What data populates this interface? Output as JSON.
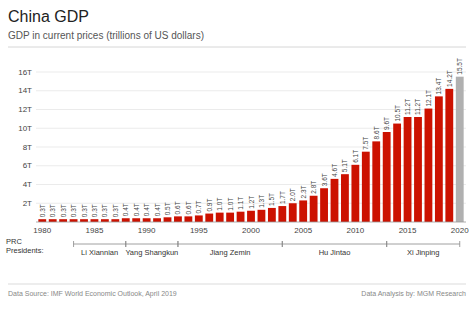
{
  "chart_data": {
    "type": "bar",
    "title": "China GDP",
    "subtitle": "GDP in current prices (trillions of US dollars)",
    "x": [
      1980,
      1981,
      1982,
      1983,
      1984,
      1985,
      1986,
      1987,
      1988,
      1989,
      1990,
      1991,
      1992,
      1993,
      1994,
      1995,
      1996,
      1997,
      1998,
      1999,
      2000,
      2001,
      2002,
      2003,
      2004,
      2005,
      2006,
      2007,
      2008,
      2009,
      2010,
      2011,
      2012,
      2013,
      2014,
      2015,
      2016,
      2017,
      2018,
      2019,
      2020
    ],
    "values": [
      0.3,
      0.3,
      0.3,
      0.3,
      0.3,
      0.3,
      0.3,
      0.3,
      0.4,
      0.4,
      0.4,
      0.4,
      0.5,
      0.6,
      0.6,
      0.7,
      0.9,
      1.0,
      1.0,
      1.1,
      1.2,
      1.3,
      1.5,
      1.7,
      2.0,
      2.3,
      2.8,
      3.6,
      4.6,
      5.1,
      6.1,
      7.5,
      8.6,
      9.6,
      10.5,
      11.2,
      11.2,
      12.1,
      13.4,
      14.2,
      15.5
    ],
    "value_labels": [
      "0.3T",
      "0.3T",
      "0.3T",
      "0.3T",
      "0.3T",
      "0.3T",
      "0.3T",
      "0.3T",
      "0.4T",
      "0.4T",
      "0.4T",
      "0.4T",
      "0.5T",
      "0.6T",
      "0.6T",
      "0.7T",
      "0.9T",
      "1.0T",
      "1.0T",
      "1.1T",
      "1.2T",
      "1.3T",
      "1.5T",
      "1.7T",
      "2.0T",
      "2.3T",
      "2.8T",
      "3.6T",
      "4.6T",
      "5.1T",
      "6.1T",
      "7.5T",
      "8.6T",
      "9.6T",
      "10.5T",
      "11.2T",
      "11.2T",
      "12.1T",
      "13.4T",
      "14.2T",
      "15.5T"
    ],
    "data_labels": true,
    "colors": [
      "#cc1100",
      "#cc1100",
      "#cc1100",
      "#cc1100",
      "#cc1100",
      "#cc1100",
      "#cc1100",
      "#cc1100",
      "#cc1100",
      "#cc1100",
      "#cc1100",
      "#cc1100",
      "#cc1100",
      "#cc1100",
      "#cc1100",
      "#cc1100",
      "#cc1100",
      "#cc1100",
      "#cc1100",
      "#cc1100",
      "#cc1100",
      "#cc1100",
      "#cc1100",
      "#cc1100",
      "#cc1100",
      "#cc1100",
      "#cc1100",
      "#cc1100",
      "#cc1100",
      "#cc1100",
      "#cc1100",
      "#cc1100",
      "#cc1100",
      "#cc1100",
      "#cc1100",
      "#cc1100",
      "#cc1100",
      "#cc1100",
      "#cc1100",
      "#cc1100",
      "#b0b0b0"
    ],
    "xlim": [
      1979.4,
      2020.6
    ],
    "xticks": [
      1980,
      1985,
      1990,
      1995,
      2000,
      2005,
      2010,
      2015,
      2020
    ],
    "ylim": [
      0,
      16
    ],
    "yticks": [
      {
        "value": 2,
        "label": "2T"
      },
      {
        "value": 4,
        "label": "4T"
      },
      {
        "value": 6,
        "label": "6T"
      },
      {
        "value": 8,
        "label": "8T"
      },
      {
        "value": 10,
        "label": "10T"
      },
      {
        "value": 12,
        "label": "12T"
      },
      {
        "value": 14,
        "label": "14T"
      },
      {
        "value": 16,
        "label": "16T"
      }
    ],
    "grid": true,
    "annotation": "PRC\nPresidents:",
    "spans": [
      {
        "label": "Li Xiannian",
        "start": 1983,
        "end": 1988
      },
      {
        "label": "Yang Shangkun",
        "start": 1988,
        "end": 1993
      },
      {
        "label": "Jiang Zemin",
        "start": 1993,
        "end": 2003
      },
      {
        "label": "Hu Jintao",
        "start": 2003,
        "end": 2013
      },
      {
        "label": "Xi Jinping",
        "start": 2013,
        "end": 2020
      }
    ],
    "notes": [
      "Data Source: IMF World Economic Outlook, April 2019",
      "Data Analysis by: MGM Research"
    ]
  }
}
